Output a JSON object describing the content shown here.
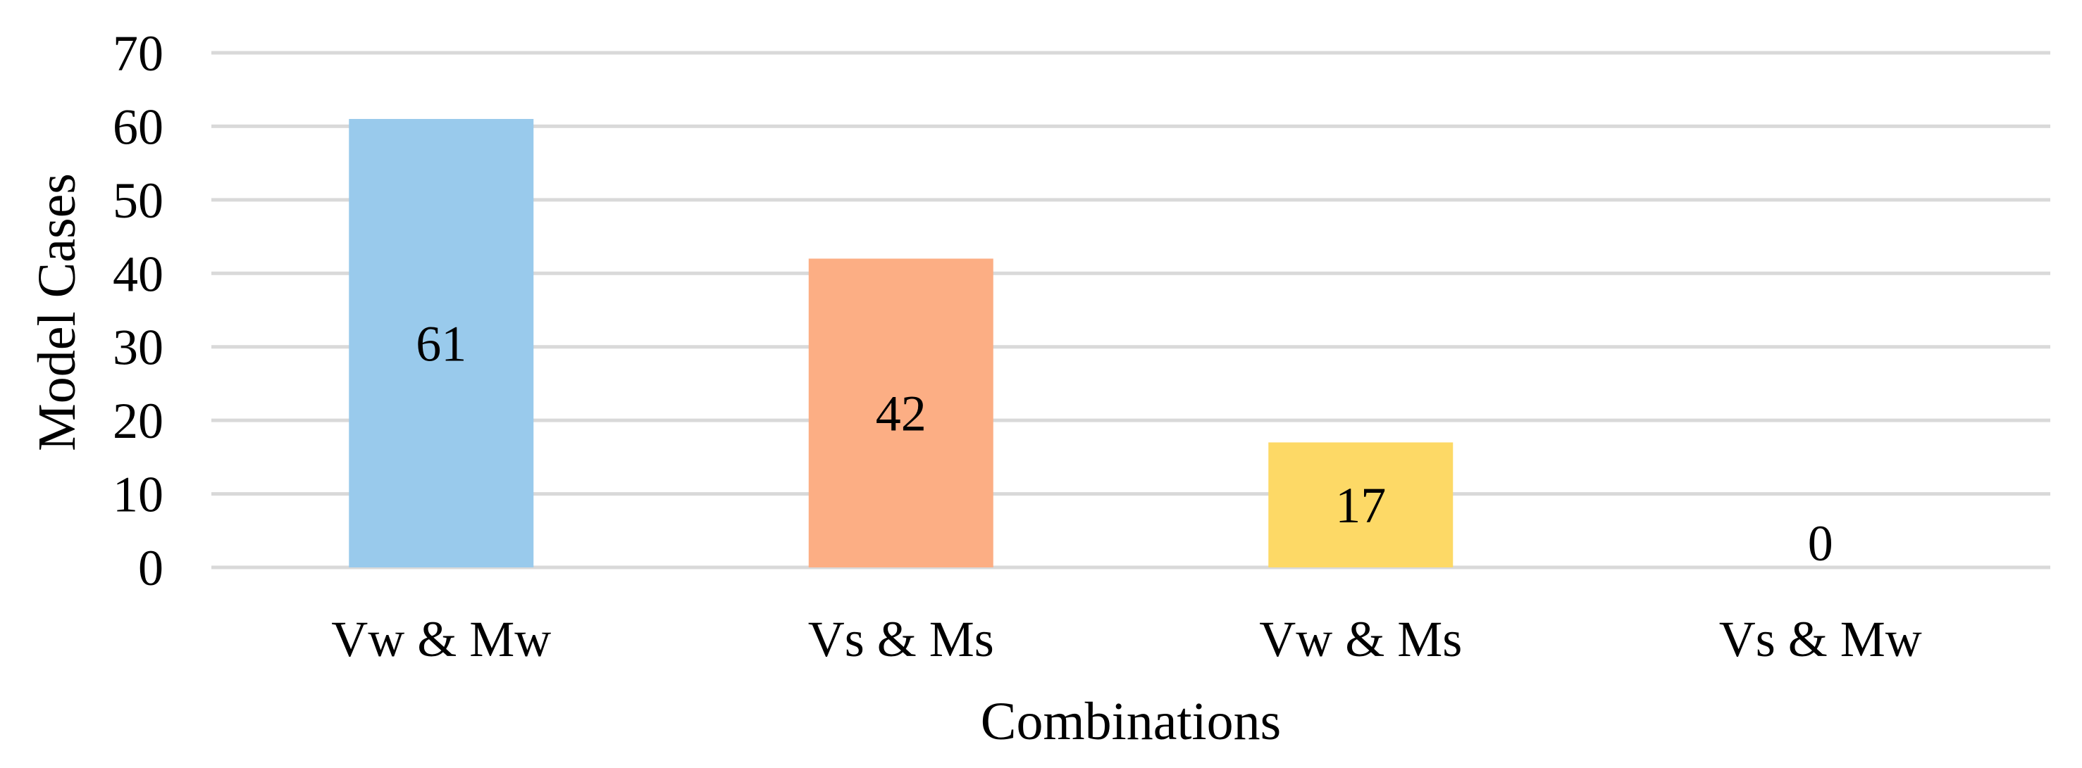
{
  "chart_data": {
    "type": "bar",
    "categories": [
      "Vw & Mw",
      "Vs & Ms",
      "Vw & Ms",
      "Vs & Mw"
    ],
    "values": [
      61,
      42,
      17,
      0
    ],
    "data_labels": [
      "61",
      "42",
      "17",
      "0"
    ],
    "bar_colors": [
      "#99CAEC",
      "#FCAE84",
      "#FDD966",
      "#BFBFBF"
    ],
    "xlabel": "Combinations",
    "ylabel": "Model Cases",
    "ylim": [
      0,
      70
    ],
    "yticks": [
      0,
      10,
      20,
      30,
      40,
      50,
      60,
      70
    ],
    "ytick_labels": [
      "0",
      "10",
      "20",
      "30",
      "40",
      "50",
      "60",
      "70"
    ],
    "grid": true,
    "grid_color": "#D9D9D9",
    "legend": "none"
  }
}
